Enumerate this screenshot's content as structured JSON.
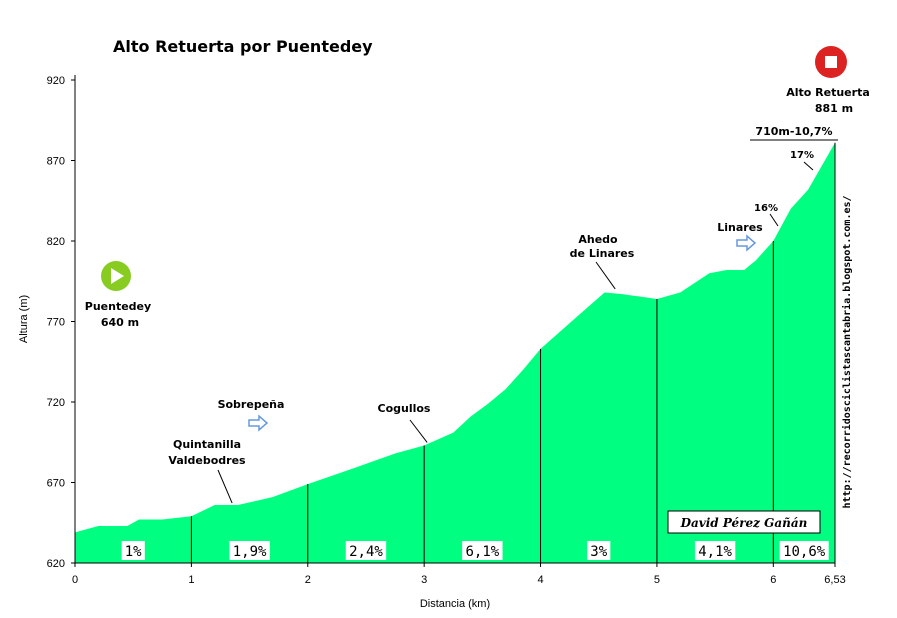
{
  "chart_data": {
    "type": "area",
    "title": "Alto Retuerta por Puentedey",
    "xlabel": "Distancia (km)",
    "ylabel": "Altura (m)",
    "xlim": [
      0,
      6.53
    ],
    "ylim": [
      620,
      920
    ],
    "y_ticks": [
      "620",
      "670",
      "720",
      "770",
      "820",
      "870",
      "920"
    ],
    "x_ticks": [
      "0",
      "1",
      "2",
      "3",
      "4",
      "5",
      "6",
      "6,53"
    ],
    "x_tick_values": [
      0,
      1,
      2,
      3,
      4,
      5,
      6,
      6.53
    ],
    "grid": false,
    "fill_color": "#00ff80",
    "profile": {
      "x": [
        0,
        0.2,
        0.45,
        0.55,
        0.75,
        1.0,
        1.2,
        1.4,
        1.7,
        2.0,
        2.4,
        2.75,
        3.0,
        3.25,
        3.4,
        3.55,
        3.7,
        3.85,
        4.0,
        4.25,
        4.55,
        4.7,
        5.0,
        5.2,
        5.45,
        5.6,
        5.75,
        5.85,
        6.0,
        6.15,
        6.3,
        6.53
      ],
      "y": [
        639,
        643,
        643,
        647,
        647,
        649,
        656,
        656,
        661,
        669,
        679,
        688,
        693,
        701,
        711,
        719,
        728,
        740,
        753,
        769,
        788,
        787,
        784,
        788,
        800,
        802,
        802,
        808,
        820,
        840,
        852,
        881
      ]
    },
    "km_markers": [
      1,
      2,
      3,
      4,
      5,
      6
    ],
    "segment_gradients": [
      "1%",
      "1,9%",
      "2,4%",
      "6,1%",
      "3%",
      "4,1%",
      "10,6%"
    ],
    "segment_centers": [
      0.5,
      1.5,
      2.5,
      3.5,
      4.5,
      5.5,
      6.265
    ],
    "start": {
      "name": "Puentedey",
      "altitude": "640 m"
    },
    "summit": {
      "name": "Alto Retuerta",
      "altitude": "881 m",
      "final_stretch": "710m-10,7%"
    },
    "annotations": [
      {
        "text": "Quintanilla",
        "text2": "Valdebodres",
        "x": 1.35,
        "y": 656
      },
      {
        "text": "Sobrepeña",
        "x": 1.55,
        "y": 693,
        "arrow": true
      },
      {
        "text": "Cogullos",
        "x": 3.0,
        "y": 693
      },
      {
        "text": "Ahedo",
        "text2": "de Linares",
        "x": 4.65,
        "y": 789
      },
      {
        "text": "Linares",
        "x": 5.78,
        "y": 807,
        "arrow": true
      },
      {
        "text": "16%",
        "x": 6.0,
        "y": 825,
        "small": true
      },
      {
        "text": "17%",
        "x": 6.35,
        "y": 855,
        "small": true
      }
    ],
    "signature": "David Pérez Gañán",
    "url": "http://recorridosciclistascantabria.blogspot.com.es/"
  },
  "colors": {
    "area": "#00ff80",
    "start_icon": "#88cc22",
    "summit_icon": "#dd2222",
    "arrow": "#6699dd"
  }
}
